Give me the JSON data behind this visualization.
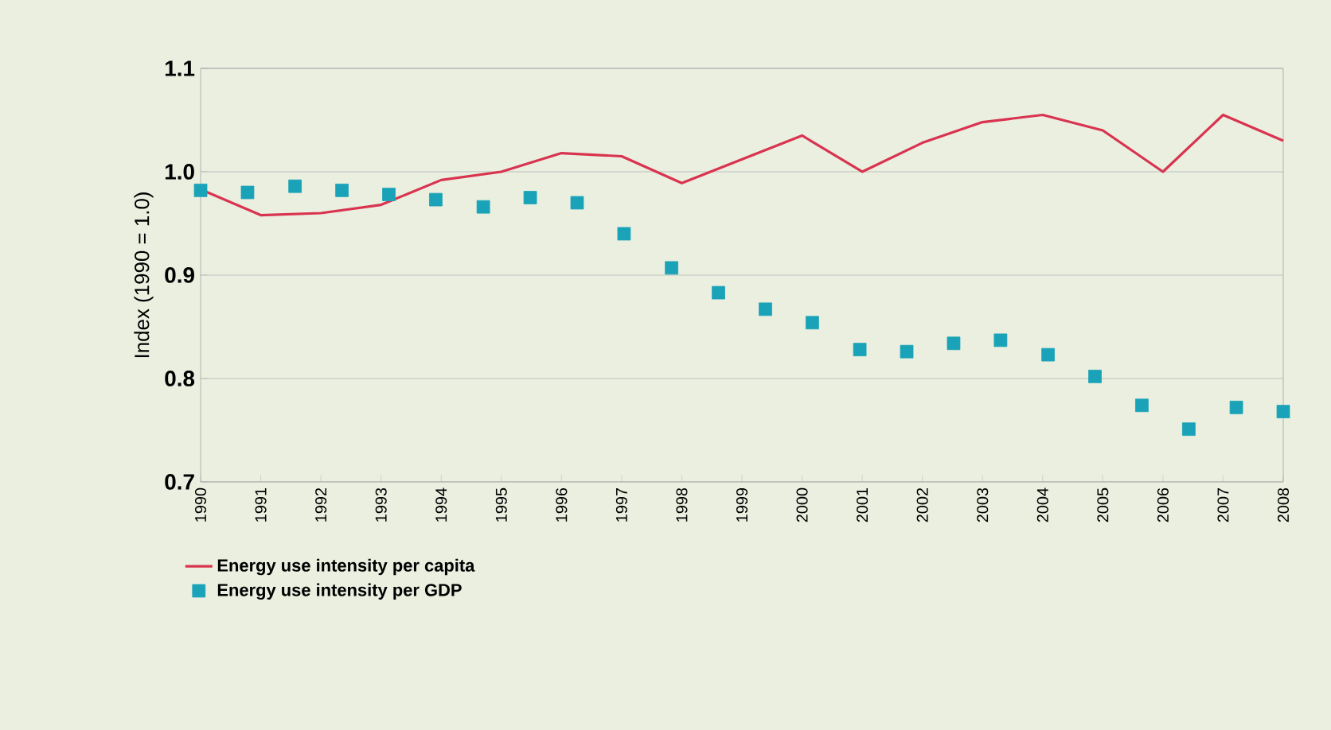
{
  "chart_data": {
    "type": "line",
    "ylabel": "Index (1990 = 1.0)",
    "xlim": [
      1990,
      2008
    ],
    "ylim": [
      0.7,
      1.1
    ],
    "xticks": [
      1990,
      1991,
      1992,
      1993,
      1994,
      1995,
      1996,
      1997,
      1998,
      1999,
      2000,
      2001,
      2002,
      2003,
      2004,
      2005,
      2006,
      2007,
      2008
    ],
    "yticks": [
      {
        "value": 0.7,
        "label": "0.7"
      },
      {
        "value": 0.8,
        "label": "0.8"
      },
      {
        "value": 0.9,
        "label": "0.9"
      },
      {
        "value": 1.0,
        "label": "1.0"
      },
      {
        "value": 1.1,
        "label": "1.1"
      }
    ],
    "grid": "y",
    "legend": "bottom left",
    "series": [
      {
        "name": "Energy use intensity per capita",
        "color": "#d9334f",
        "marker": "none",
        "x": [
          1990,
          1991,
          1992,
          1993,
          1994,
          1995,
          1996,
          1997,
          1998,
          1999,
          2000,
          2001,
          2002,
          2003,
          2004,
          2005,
          2006,
          2007,
          2008
        ],
        "values": [
          0.983,
          0.958,
          0.96,
          0.968,
          0.992,
          1.0,
          1.018,
          1.015,
          0.989,
          1.012,
          1.035,
          1.0,
          1.028,
          1.048,
          1.055,
          1.04,
          1.0,
          1.055,
          1.03
        ]
      },
      {
        "name": "Energy use intensity per GDP",
        "type": "scatter",
        "color": "#1aa3b8",
        "marker": "square",
        "x": [
          1990,
          1990.78,
          1991.57,
          1992.35,
          1993.13,
          1993.91,
          1994.7,
          1995.48,
          1996.26,
          1997.04,
          1997.83,
          1998.61,
          1999.39,
          2000.17,
          2000.96,
          2001.74,
          2002.52,
          2003.3,
          2004.09,
          2004.87,
          2005.65,
          2006.43,
          2007.22,
          2008
        ],
        "values": [
          0.982,
          0.98,
          0.986,
          0.982,
          0.978,
          0.973,
          0.966,
          0.975,
          0.97,
          0.94,
          0.907,
          0.883,
          0.867,
          0.854,
          0.828,
          0.826,
          0.834,
          0.837,
          0.823,
          0.802,
          0.774,
          0.751,
          0.772,
          0.768
        ]
      }
    ]
  }
}
